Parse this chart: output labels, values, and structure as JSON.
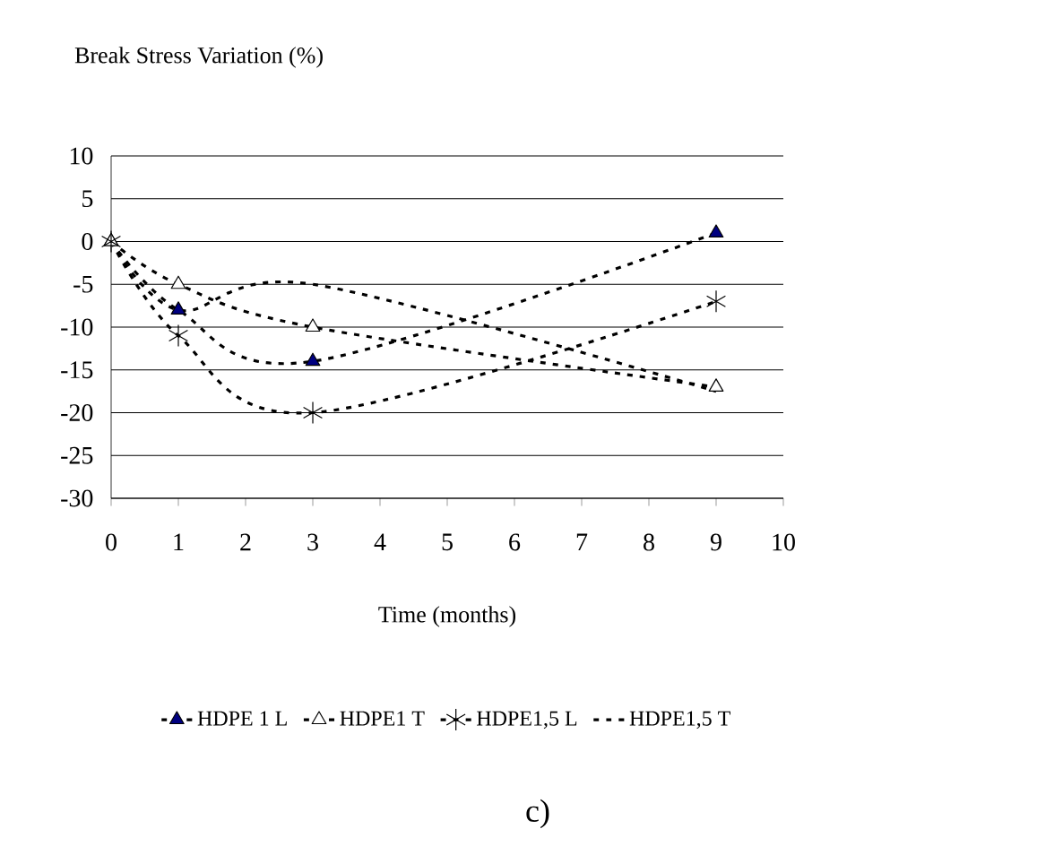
{
  "chart_data": {
    "type": "line",
    "title": "Break Stress Variation (%)",
    "xlabel": "Time (months)",
    "x": [
      0,
      1,
      3,
      9
    ],
    "series": [
      {
        "name": "HDPE 1 L",
        "color": "#000080",
        "marker": "triangle",
        "values": [
          0,
          -8,
          -14,
          1
        ]
      },
      {
        "name": "HDPE1 T",
        "color": "#ffffff",
        "marker": "triangle",
        "values": [
          0,
          -5,
          -10,
          -17
        ]
      },
      {
        "name": "HDPE1,5 L",
        "color": "#000000",
        "marker": "cross",
        "values": [
          0,
          -11,
          -20,
          -7
        ]
      },
      {
        "name": "HDPE1,5 T",
        "color": "#000000",
        "marker": "none",
        "values": [
          0,
          -8,
          -5,
          -17.5
        ]
      }
    ],
    "xlim": [
      0,
      10
    ],
    "xticks": [
      0,
      1,
      2,
      3,
      4,
      5,
      6,
      7,
      8,
      9,
      10
    ],
    "ylim": [
      -30,
      10
    ],
    "yticks": [
      -30,
      -25,
      -20,
      -15,
      -10,
      -5,
      0,
      5,
      10
    ],
    "grid": "y",
    "legend": "bottom",
    "line_style": "dashed",
    "annotations": [
      "c)"
    ]
  }
}
